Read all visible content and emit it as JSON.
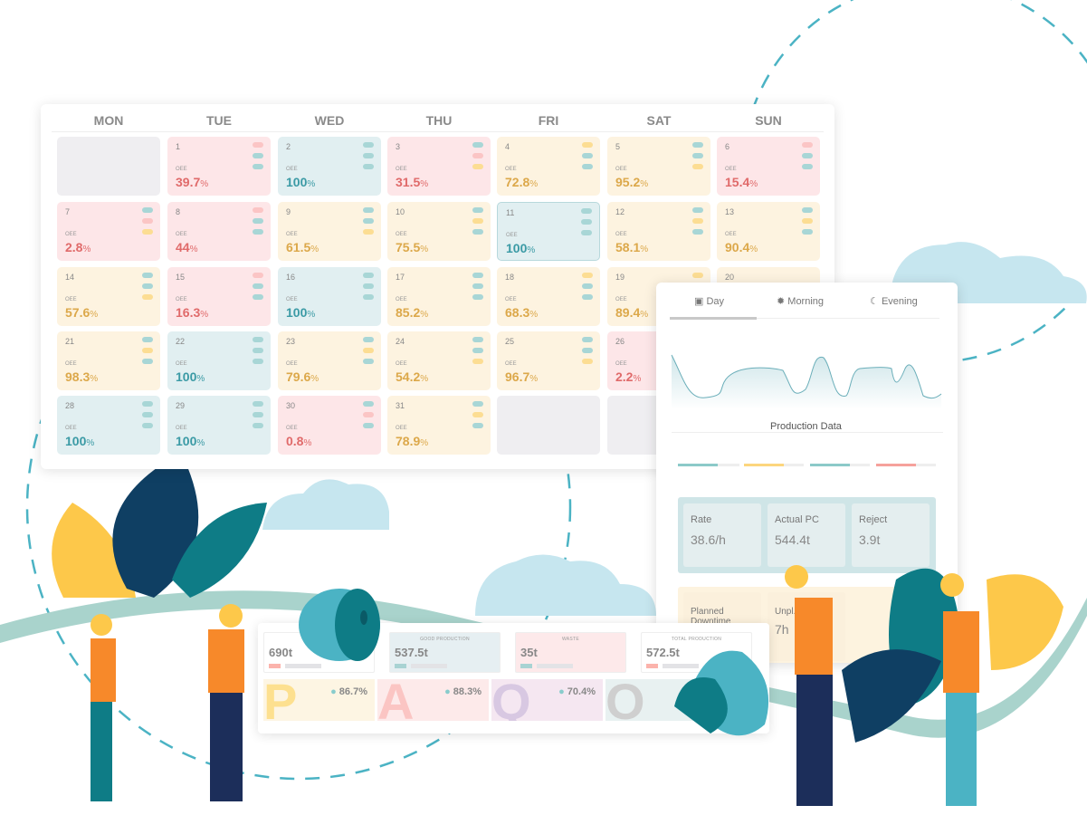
{
  "calendar": {
    "weekdays": [
      "MON",
      "TUE",
      "WED",
      "THU",
      "FRI",
      "SAT",
      "SUN"
    ],
    "oee_label": "OEE",
    "colors": {
      "red": "#fde6e8",
      "teal": "#e1eff1",
      "yellow": "#fdf3e0",
      "empty": "#efeef1",
      "red_text": "#e06a6a",
      "teal_text": "#3a9aa5",
      "yellow_text": "#dca84a"
    },
    "cells": [
      {
        "day": "",
        "status": "empty"
      },
      {
        "day": "1",
        "value": "39.7",
        "status": "red",
        "dots": [
          "r",
          "t",
          "t"
        ]
      },
      {
        "day": "2",
        "value": "100",
        "status": "teal",
        "dots": [
          "t",
          "t",
          "t"
        ]
      },
      {
        "day": "3",
        "value": "31.5",
        "status": "red",
        "dots": [
          "t",
          "r",
          "y"
        ]
      },
      {
        "day": "4",
        "value": "72.8",
        "status": "yellow",
        "dots": [
          "y",
          "t",
          "t"
        ]
      },
      {
        "day": "5",
        "value": "95.2",
        "status": "yellow",
        "dots": [
          "t",
          "t",
          "y"
        ]
      },
      {
        "day": "6",
        "value": "15.4",
        "status": "red",
        "dots": [
          "r",
          "t",
          "t"
        ]
      },
      {
        "day": "7",
        "value": "2.8",
        "status": "red",
        "dots": [
          "t",
          "r",
          "y"
        ]
      },
      {
        "day": "8",
        "value": "44",
        "status": "red",
        "dots": [
          "r",
          "t",
          "t"
        ]
      },
      {
        "day": "9",
        "value": "61.5",
        "status": "yellow",
        "dots": [
          "t",
          "t",
          "y"
        ]
      },
      {
        "day": "10",
        "value": "75.5",
        "status": "yellow",
        "dots": [
          "t",
          "y",
          "t"
        ]
      },
      {
        "day": "11",
        "value": "100",
        "status": "teal",
        "dots": [
          "t",
          "t",
          "t"
        ]
      },
      {
        "day": "12",
        "value": "58.1",
        "status": "yellow",
        "dots": [
          "t",
          "y",
          "t"
        ]
      },
      {
        "day": "13",
        "value": "90.4",
        "status": "yellow",
        "dots": [
          "t",
          "y",
          "t"
        ]
      },
      {
        "day": "14",
        "value": "57.6",
        "status": "yellow",
        "dots": [
          "t",
          "t",
          "y"
        ]
      },
      {
        "day": "15",
        "value": "16.3",
        "status": "red",
        "dots": [
          "r",
          "t",
          "t"
        ]
      },
      {
        "day": "16",
        "value": "100",
        "status": "teal",
        "dots": [
          "t",
          "t",
          "t"
        ]
      },
      {
        "day": "17",
        "value": "85.2",
        "status": "yellow",
        "dots": [
          "t",
          "t",
          "t"
        ]
      },
      {
        "day": "18",
        "value": "68.3",
        "status": "yellow",
        "dots": [
          "y",
          "t",
          "t"
        ]
      },
      {
        "day": "19",
        "value": "89.4",
        "status": "yellow",
        "dots": [
          "y",
          "t",
          "t"
        ]
      },
      {
        "day": "20",
        "value": "",
        "status": "yellow",
        "dots": []
      },
      {
        "day": "21",
        "value": "98.3",
        "status": "yellow",
        "dots": [
          "t",
          "y",
          "t"
        ]
      },
      {
        "day": "22",
        "value": "100",
        "status": "teal",
        "dots": [
          "t",
          "t",
          "t"
        ]
      },
      {
        "day": "23",
        "value": "79.6",
        "status": "yellow",
        "dots": [
          "t",
          "y",
          "t"
        ]
      },
      {
        "day": "24",
        "value": "54.2",
        "status": "yellow",
        "dots": [
          "t",
          "t",
          "y"
        ]
      },
      {
        "day": "25",
        "value": "96.7",
        "status": "yellow",
        "dots": [
          "t",
          "t",
          "y"
        ]
      },
      {
        "day": "26",
        "value": "2.2",
        "status": "red",
        "dots": []
      },
      {
        "day": "",
        "status": "hidden"
      },
      {
        "day": "28",
        "value": "100",
        "status": "teal",
        "dots": [
          "t",
          "t",
          "t"
        ]
      },
      {
        "day": "29",
        "value": "100",
        "status": "teal",
        "dots": [
          "t",
          "t",
          "t"
        ]
      },
      {
        "day": "30",
        "value": "0.8",
        "status": "red",
        "dots": [
          "t",
          "r",
          "t"
        ]
      },
      {
        "day": "31",
        "value": "78.9",
        "status": "yellow",
        "dots": [
          "t",
          "y",
          "t"
        ]
      },
      {
        "day": "",
        "status": "empty"
      },
      {
        "day": "",
        "status": "empty"
      }
    ]
  },
  "panel": {
    "tabs": [
      {
        "label": "Day",
        "icon": "calendar-icon",
        "active": true
      },
      {
        "label": "Morning",
        "icon": "sun-icon"
      },
      {
        "label": "Evening",
        "icon": "moon-icon"
      }
    ],
    "section_title": "Production Data",
    "stats": [
      {
        "label": "Rate",
        "value": "38.6/h"
      },
      {
        "label": "Actual PC",
        "value": "544.4t"
      },
      {
        "label": "Reject",
        "value": "3.9t"
      }
    ],
    "downtime": [
      {
        "label": "Planned Downtime"
      },
      {
        "label": "Unpl... Dow...",
        "value": "7h"
      }
    ]
  },
  "summary": {
    "kpis": [
      {
        "label": "SCHEDULED",
        "value": "690t",
        "bg": "#ffffff"
      },
      {
        "label": "GOOD PRODUCTION",
        "value": "537.5t",
        "bg": "#e6eff2"
      },
      {
        "label": "WASTE",
        "value": "35t",
        "bg": "#fde9ea"
      },
      {
        "label": "TOTAL PRODUCTION",
        "value": "572.5t",
        "bg": "#ffffff"
      }
    ],
    "metrics": [
      {
        "letter": "P",
        "value": "86.7%",
        "color": "#fde08f",
        "bg": "#fdf5e3"
      },
      {
        "letter": "A",
        "value": "88.3%",
        "color": "#fbc5c3",
        "bg": "#fdeaea"
      },
      {
        "letter": "Q",
        "value": "70.4%",
        "color": "#d8c8e2",
        "bg": "#f5e7f1"
      },
      {
        "letter": "O",
        "value": "",
        "color": "#cfcfcf",
        "bg": "#e8f1f1"
      }
    ]
  }
}
